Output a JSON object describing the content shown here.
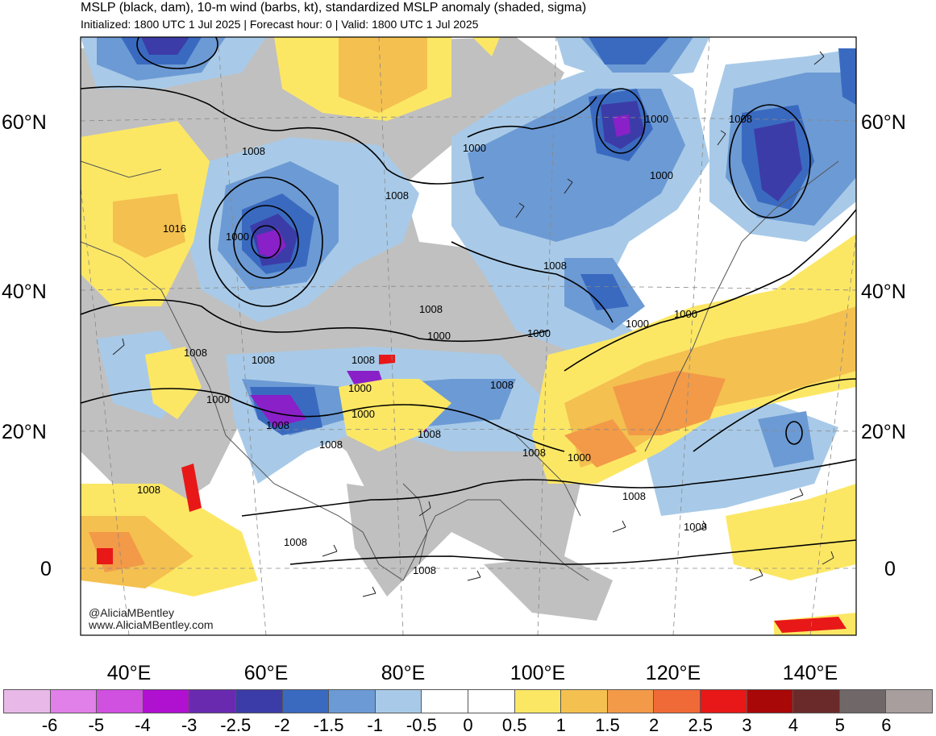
{
  "title": "MSLP (black, dam), 10-m wind (barbs, kt), standardized MSLP anomaly (shaded, sigma)",
  "subtitle": "Initialized: 1800 UTC 1 Jul 2025 | Forecast hour: 0 | Valid: 1800 UTC 1 Jul 2025",
  "credits": [
    "@AliciaMBentley",
    "www.AliciaMBentley.com"
  ],
  "lat_labels": [
    "60°N",
    "40°N",
    "20°N",
    "0"
  ],
  "lon_labels": [
    "40°E",
    "60°E",
    "80°E",
    "100°E",
    "120°E",
    "140°E"
  ],
  "isobar_labels": [
    "1008",
    "1016",
    "1000",
    "1008",
    "1000",
    "1000",
    "1008",
    "1000",
    "1008",
    "1008",
    "1000",
    "1008",
    "1008",
    "1008",
    "1000",
    "1000",
    "1008",
    "1000",
    "1000",
    "1008",
    "1000",
    "1000",
    "1008",
    "1008",
    "1008",
    "1000",
    "1008",
    "1008",
    "1008",
    "1008",
    "1008"
  ],
  "colorbar": {
    "colors": [
      "#e8b8e8",
      "#e080e8",
      "#d050e0",
      "#b010d0",
      "#6a2ab0",
      "#3c3ca8",
      "#3a6ac0",
      "#6c9ad4",
      "#a8cae8",
      "#ffffff",
      "#ffffff",
      "#fce765",
      "#f4c050",
      "#f29a48",
      "#f06a38",
      "#e81818",
      "#a80808",
      "#6a2a2a",
      "#706868",
      "#a89e9e"
    ],
    "ticks": [
      "-6",
      "-5",
      "-4",
      "-3",
      "-2.5",
      "-2",
      "-1.5",
      "-1",
      "-0.5",
      "0",
      "0.5",
      "1",
      "1.5",
      "2",
      "2.5",
      "3",
      "4",
      "5",
      "6"
    ]
  }
}
